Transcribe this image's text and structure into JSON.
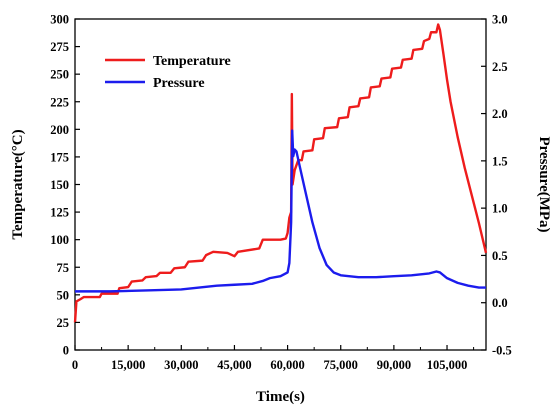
{
  "chart_data": {
    "type": "line",
    "title": "",
    "xlabel": "Time(s)",
    "ylabel": "Temperature(°C)",
    "y2label": "Pressure(MPa)",
    "xlim": [
      0,
      116000
    ],
    "ylim": [
      0,
      300
    ],
    "y2lim": [
      -0.5,
      3.0
    ],
    "xticks": [
      0,
      15000,
      30000,
      45000,
      60000,
      75000,
      90000,
      105000
    ],
    "xtick_labels": [
      "0",
      "15,000",
      "30,000",
      "45,000",
      "60,000",
      "75,000",
      "90,000",
      "105,000"
    ],
    "yticks": [
      0,
      25,
      50,
      75,
      100,
      125,
      150,
      175,
      200,
      225,
      250,
      275,
      300
    ],
    "ytick_labels": [
      "0",
      "25",
      "50",
      "75",
      "100",
      "125",
      "150",
      "175",
      "200",
      "225",
      "250",
      "275",
      "300"
    ],
    "y2ticks": [
      -0.5,
      0.0,
      0.5,
      1.0,
      1.5,
      2.0,
      2.5,
      3.0
    ],
    "y2tick_labels": [
      "-0.5",
      "0.0",
      "0.5",
      "1.0",
      "1.5",
      "2.0",
      "2.5",
      "3.0"
    ],
    "grid": false,
    "legend_position": "top-left",
    "series": [
      {
        "name": "Temperature",
        "axis": "left",
        "color": "#ee1c1c",
        "points": [
          [
            0,
            25
          ],
          [
            400,
            44
          ],
          [
            1500,
            46
          ],
          [
            2500,
            48
          ],
          [
            7000,
            48
          ],
          [
            7500,
            51
          ],
          [
            12000,
            51
          ],
          [
            12500,
            56
          ],
          [
            15000,
            57
          ],
          [
            16000,
            62
          ],
          [
            19000,
            63
          ],
          [
            20000,
            66
          ],
          [
            23000,
            67
          ],
          [
            24000,
            70
          ],
          [
            27000,
            70
          ],
          [
            28000,
            74
          ],
          [
            31000,
            75
          ],
          [
            32000,
            80
          ],
          [
            36000,
            81
          ],
          [
            37000,
            86
          ],
          [
            39000,
            89
          ],
          [
            43000,
            88
          ],
          [
            45000,
            85
          ],
          [
            46000,
            89
          ],
          [
            52000,
            92
          ],
          [
            53000,
            100
          ],
          [
            58000,
            100
          ],
          [
            59500,
            101
          ],
          [
            60000,
            106
          ],
          [
            60500,
            120
          ],
          [
            61000,
            125
          ],
          [
            61200,
            232
          ],
          [
            61400,
            150
          ],
          [
            62000,
            163
          ],
          [
            63000,
            172
          ],
          [
            64000,
            172
          ],
          [
            64500,
            180
          ],
          [
            67000,
            181
          ],
          [
            67500,
            191
          ],
          [
            70000,
            192
          ],
          [
            70500,
            201
          ],
          [
            74000,
            202
          ],
          [
            74500,
            210
          ],
          [
            77000,
            211
          ],
          [
            77500,
            220
          ],
          [
            80000,
            221
          ],
          [
            80500,
            228
          ],
          [
            83000,
            229
          ],
          [
            83500,
            238
          ],
          [
            86000,
            239
          ],
          [
            86500,
            246
          ],
          [
            89000,
            247
          ],
          [
            89500,
            255
          ],
          [
            92000,
            256
          ],
          [
            92500,
            263
          ],
          [
            95000,
            264
          ],
          [
            95500,
            272
          ],
          [
            98000,
            273
          ],
          [
            98500,
            280
          ],
          [
            100000,
            282
          ],
          [
            100500,
            288
          ],
          [
            102000,
            288
          ],
          [
            102500,
            295
          ],
          [
            103000,
            290
          ],
          [
            104000,
            268
          ],
          [
            105000,
            245
          ],
          [
            106000,
            225
          ],
          [
            108000,
            193
          ],
          [
            110000,
            165
          ],
          [
            112000,
            140
          ],
          [
            114000,
            115
          ],
          [
            116000,
            88
          ]
        ]
      },
      {
        "name": "Pressure",
        "axis": "right",
        "color": "#1c1ced",
        "points": [
          [
            0,
            0.12
          ],
          [
            10000,
            0.12
          ],
          [
            20000,
            0.13
          ],
          [
            30000,
            0.14
          ],
          [
            35000,
            0.16
          ],
          [
            40000,
            0.18
          ],
          [
            45000,
            0.19
          ],
          [
            50000,
            0.2
          ],
          [
            53000,
            0.23
          ],
          [
            55000,
            0.26
          ],
          [
            58000,
            0.28
          ],
          [
            60000,
            0.32
          ],
          [
            60500,
            0.42
          ],
          [
            61000,
            0.85
          ],
          [
            61300,
            1.82
          ],
          [
            61600,
            1.55
          ],
          [
            62000,
            1.62
          ],
          [
            62500,
            1.6
          ],
          [
            63500,
            1.43
          ],
          [
            65000,
            1.18
          ],
          [
            67000,
            0.85
          ],
          [
            69000,
            0.58
          ],
          [
            71000,
            0.4
          ],
          [
            73000,
            0.32
          ],
          [
            75000,
            0.29
          ],
          [
            80000,
            0.27
          ],
          [
            85000,
            0.27
          ],
          [
            90000,
            0.28
          ],
          [
            95000,
            0.29
          ],
          [
            100000,
            0.31
          ],
          [
            102000,
            0.33
          ],
          [
            103000,
            0.32
          ],
          [
            105000,
            0.26
          ],
          [
            108000,
            0.21
          ],
          [
            111000,
            0.18
          ],
          [
            114000,
            0.16
          ],
          [
            116000,
            0.16
          ]
        ]
      }
    ]
  }
}
